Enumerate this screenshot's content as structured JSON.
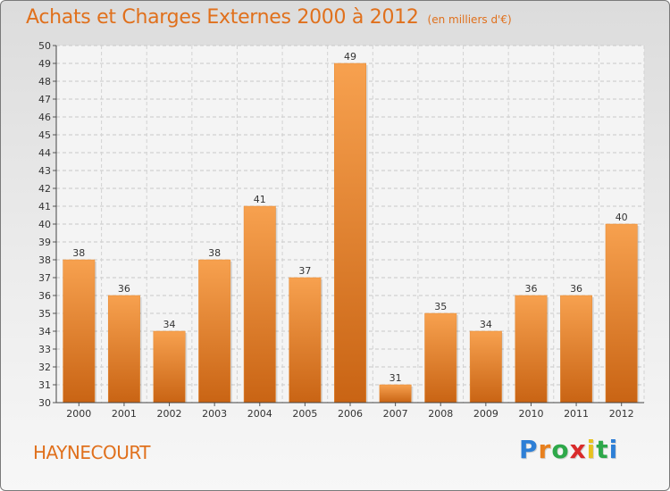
{
  "header": {
    "title": "Achats et Charges Externes 2000 à 2012",
    "subtitle": "(en milliers d'€)"
  },
  "footer": {
    "commune": "HAYNECOURT"
  },
  "logo": {
    "name": "Proxiti",
    "letters": [
      "P",
      "r",
      "o",
      "x",
      "i",
      "t",
      "i"
    ],
    "colors": [
      "#2e7fd6",
      "#e8801e",
      "#2ea84a",
      "#d92b2b",
      "#e8c21e",
      "#2ea84a",
      "#2e7fd6"
    ]
  },
  "chart_data": {
    "type": "bar",
    "categories": [
      "2000",
      "2001",
      "2002",
      "2003",
      "2004",
      "2005",
      "2006",
      "2007",
      "2008",
      "2009",
      "2010",
      "2011",
      "2012"
    ],
    "values": [
      38,
      36,
      34,
      38,
      41,
      37,
      49,
      31,
      35,
      34,
      36,
      36,
      40
    ],
    "title": "Achats et Charges Externes 2000 à 2012",
    "subtitle": "(en milliers d'€)",
    "xlabel": "",
    "ylabel": "",
    "ylim": [
      30,
      50
    ],
    "yticks": [
      30,
      31,
      32,
      33,
      34,
      35,
      36,
      37,
      38,
      39,
      40,
      41,
      42,
      43,
      44,
      45,
      46,
      47,
      48,
      49,
      50
    ],
    "grid": true,
    "legend": "none",
    "bar_color": "#f0902e"
  }
}
